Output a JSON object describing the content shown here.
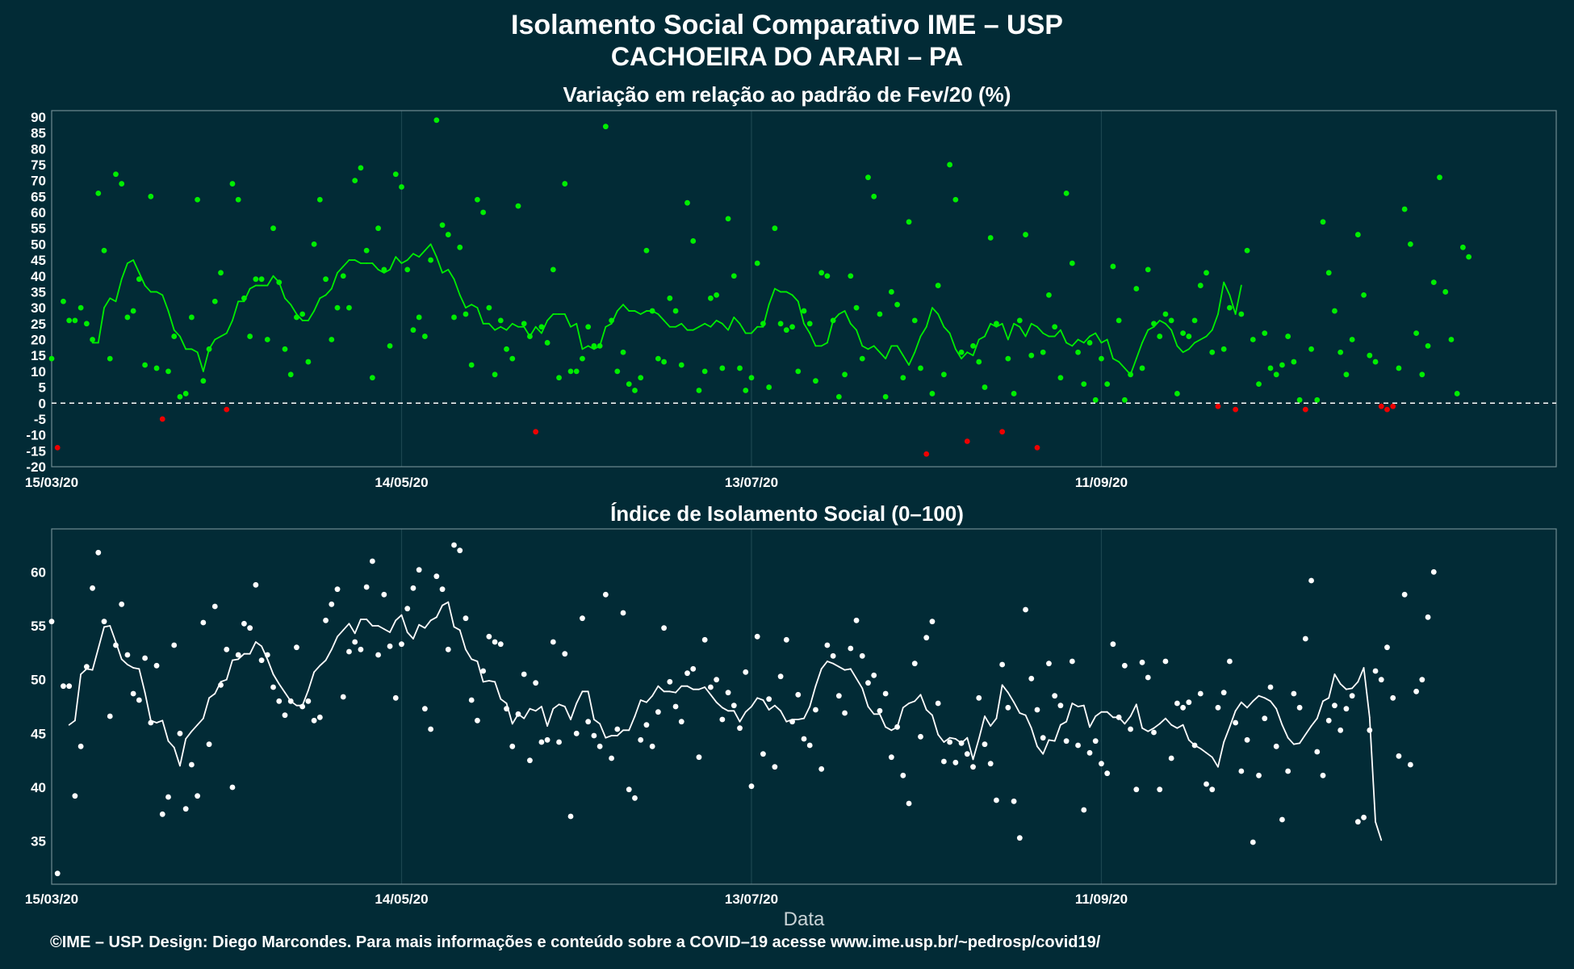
{
  "title": "Isolamento Social Comparativo IME – USP",
  "subtitle": "CACHOEIRA DO ARARI – PA",
  "footer": "©IME – USP. Design: Diego Marcondes. Para mais informações e conteúdo sobre a COVID–19 acesse www.ime.usp.br/~pedrosp/covid19/",
  "colors": {
    "background": "#022b36",
    "positive": "#00ee00",
    "negative": "#ee0000",
    "index": "#ffffff",
    "grid": "#1c4650"
  },
  "chart_data": [
    {
      "type": "scatter",
      "title": "Variação em relação ao padrão de Fev/20 (%)",
      "xlabel": "",
      "ylabel": "",
      "x_start": "15/03/20",
      "x_end": "28/11/20",
      "ylim": [
        -20,
        92
      ],
      "yticks": [
        -20,
        -15,
        -10,
        -5,
        0,
        5,
        10,
        15,
        20,
        25,
        30,
        35,
        40,
        45,
        50,
        55,
        60,
        65,
        70,
        75,
        80,
        85,
        90
      ],
      "xtick_labels": [
        "15/03/20",
        "14/05/20",
        "13/07/20",
        "11/09/20"
      ],
      "reference_line": 0,
      "grid": true,
      "legend": "none",
      "series": [
        {
          "kind": "points",
          "values": [
            14,
            -14,
            32,
            26,
            26,
            30,
            25,
            20,
            66,
            48,
            14,
            72,
            69,
            27,
            29,
            39,
            12,
            65,
            11,
            -5,
            10,
            21,
            2,
            3,
            27,
            64,
            7,
            17,
            32,
            41,
            -2,
            69,
            64,
            33,
            21,
            39,
            39,
            20,
            55,
            38,
            17,
            9,
            27,
            28,
            13,
            50,
            64,
            39,
            20,
            30,
            40,
            30,
            70,
            74,
            48,
            8,
            55,
            42,
            18,
            72,
            68,
            42,
            23,
            27,
            21,
            45,
            89,
            56,
            53,
            27,
            49,
            28,
            12,
            64,
            60,
            30,
            9,
            26,
            17,
            14,
            62,
            25,
            21,
            -9,
            24,
            19,
            42,
            8,
            69,
            10,
            10,
            14,
            24,
            18,
            18,
            87,
            26,
            10,
            16,
            6,
            4,
            8,
            48,
            29,
            14,
            13,
            33,
            29,
            12,
            63,
            51,
            4,
            10,
            33,
            34,
            11,
            58,
            40,
            11,
            4,
            8,
            44,
            25,
            5,
            55,
            25,
            23,
            24,
            10,
            29,
            25,
            7,
            41,
            40,
            26,
            2,
            9,
            40,
            30,
            14,
            71,
            65,
            28,
            2,
            35,
            31,
            8,
            57,
            26,
            11,
            -16,
            3,
            37,
            9,
            75,
            64,
            16,
            -12,
            18,
            13,
            5,
            52,
            25,
            -9,
            14,
            3,
            26,
            53,
            15,
            -14,
            16,
            34,
            24,
            8,
            66,
            44,
            16,
            6,
            19,
            1,
            14,
            6,
            43,
            26,
            1,
            9,
            36,
            11,
            42,
            25,
            21,
            28,
            26,
            3,
            22,
            21,
            26,
            37,
            41,
            16,
            -1,
            17,
            30,
            -2,
            28,
            48,
            20,
            6,
            22,
            11,
            9,
            12,
            21,
            13,
            1,
            -2,
            17,
            1,
            57,
            41,
            29,
            16,
            9,
            20,
            53,
            34,
            15,
            13,
            -1,
            -2,
            -1,
            11,
            61,
            50,
            22,
            9,
            18,
            38,
            71,
            35,
            20,
            3,
            49,
            46
          ]
        },
        {
          "kind": "line",
          "start_index": 7,
          "values": [
            19,
            19,
            30,
            33,
            32,
            39,
            44,
            45,
            41,
            37,
            35,
            35,
            34,
            29,
            23,
            21,
            17,
            17,
            16,
            10,
            17,
            20,
            21,
            22,
            26,
            32,
            32,
            36,
            37,
            37,
            37,
            40,
            38,
            33,
            31,
            28,
            26,
            26,
            29,
            33,
            34,
            36,
            41,
            43,
            45,
            45,
            44,
            44,
            44,
            42,
            41,
            42,
            46,
            44,
            45,
            47,
            46,
            48,
            50,
            46,
            41,
            42,
            39,
            34,
            30,
            31,
            30,
            25,
            25,
            23,
            24,
            23,
            25,
            24,
            24,
            21,
            24,
            22,
            26,
            28,
            28,
            28,
            24,
            25,
            17,
            18,
            17,
            18,
            24,
            25,
            29,
            31,
            29,
            29,
            28,
            29,
            29,
            28,
            26,
            24,
            24,
            25,
            23,
            23,
            24,
            25,
            24,
            26,
            25,
            23,
            27,
            25,
            22,
            22,
            24,
            24,
            31,
            36,
            35,
            35,
            34,
            32,
            25,
            22,
            18,
            18,
            19,
            26,
            28,
            29,
            25,
            23,
            18,
            17,
            18,
            16,
            14,
            18,
            18,
            15,
            12,
            16,
            21,
            24,
            30,
            28,
            24,
            22,
            17,
            14,
            16,
            15,
            20,
            21,
            25,
            24,
            25,
            20,
            25,
            24,
            21,
            25,
            24,
            22,
            21,
            21,
            23,
            19,
            18,
            20,
            19,
            21,
            22,
            19,
            20,
            14,
            13,
            11,
            9,
            14,
            19,
            23,
            24,
            26,
            25,
            23,
            18,
            16,
            17,
            19,
            20,
            21,
            23,
            28,
            38,
            34,
            28,
            37
          ]
        }
      ]
    },
    {
      "type": "scatter",
      "title": "Índice de Isolamento Social (0–100)",
      "xlabel": "Data",
      "ylabel": "",
      "x_start": "15/03/20",
      "x_end": "28/11/20",
      "ylim": [
        31,
        64
      ],
      "yticks": [
        35,
        40,
        45,
        50,
        55,
        60
      ],
      "xtick_labels": [
        "15/03/20",
        "14/05/20",
        "13/07/20",
        "11/09/20"
      ],
      "grid": true,
      "legend": "none",
      "series": [
        {
          "kind": "points",
          "values": [
            55.4,
            32.0,
            49.4,
            49.4,
            39.2,
            43.8,
            51.2,
            58.5,
            61.8,
            55.4,
            46.6,
            53.2,
            57.0,
            52.3,
            48.7,
            48.1,
            52.0,
            46.0,
            51.3,
            37.5,
            39.1,
            53.2,
            45.0,
            38.0,
            42.1,
            39.2,
            55.3,
            44.0,
            56.8,
            49.5,
            52.8,
            40.0,
            52.3,
            55.2,
            54.8,
            58.8,
            51.8,
            52.3,
            49.3,
            48.0,
            46.7,
            48.0,
            53.0,
            47.5,
            48.0,
            46.2,
            46.5,
            55.5,
            57.0,
            58.4,
            48.4,
            52.6,
            53.5,
            52.8,
            58.6,
            61.0,
            52.3,
            57.9,
            53.1,
            48.3,
            53.3,
            56.6,
            58.5,
            60.2,
            47.3,
            45.4,
            59.6,
            58.4,
            52.8,
            62.5,
            62.0,
            55.7,
            48.1,
            46.2,
            50.8,
            54.0,
            53.5,
            53.3,
            47.3,
            43.8,
            46.8,
            50.5,
            42.5,
            49.7,
            44.2,
            44.4,
            53.5,
            44.2,
            52.4,
            37.3,
            45.0,
            55.7,
            46.1,
            44.8,
            43.8,
            57.9,
            42.7,
            45.4,
            56.2,
            39.8,
            39.0,
            44.4,
            45.8,
            43.8,
            47.0,
            54.8,
            49.8,
            47.5,
            46.1,
            50.6,
            51.0,
            42.8,
            53.7,
            49.3,
            50.0,
            46.3,
            48.8,
            47.6,
            45.5,
            50.7,
            40.1,
            54.0,
            43.1,
            48.2,
            41.9,
            50.3,
            53.7,
            46.1,
            48.6,
            44.5,
            43.9,
            47.2,
            41.7,
            53.2,
            52.2,
            48.5,
            46.9,
            52.9,
            55.5,
            52.2,
            49.7,
            50.4,
            47.1,
            48.7,
            42.8,
            45.6,
            41.1,
            38.5,
            51.5,
            44.7,
            53.9,
            55.4,
            47.8,
            42.4,
            44.2,
            42.3,
            44.1,
            43.1,
            41.9,
            48.3,
            44.0,
            42.2,
            38.8,
            51.4,
            47.4,
            38.7,
            35.3,
            56.5,
            50.1,
            47.2,
            44.6,
            51.5,
            48.5,
            47.6,
            44.3,
            51.7,
            43.9,
            37.9,
            43.2,
            44.3,
            42.2,
            41.3,
            53.3,
            46.5,
            51.3,
            45.4,
            39.8,
            51.6,
            50.2,
            45.1,
            39.8,
            51.7,
            42.7,
            47.8,
            47.4,
            47.9,
            43.9,
            48.7,
            40.3,
            39.8,
            47.4,
            48.8,
            51.7,
            46.0,
            41.5,
            44.4,
            34.9,
            41.1,
            46.4,
            49.3,
            43.8,
            37.0,
            41.5,
            48.7,
            47.4,
            53.8,
            59.2,
            43.3,
            41.1,
            46.2,
            47.6,
            45.3,
            47.3,
            48.5,
            36.8,
            37.2,
            45.3,
            50.8,
            50.0,
            53.0,
            48.3,
            42.9,
            57.9,
            42.1,
            48.9,
            50.0,
            55.8,
            60.0
          ]
        },
        {
          "kind": "line",
          "start_index": 3,
          "values": [
            45.8,
            46.2,
            50.5,
            51.0,
            50.9,
            52.9,
            54.9,
            55.0,
            53.5,
            51.9,
            51.4,
            51.1,
            51.0,
            48.8,
            46.2,
            46.0,
            46.2,
            44.3,
            43.7,
            42.0,
            44.5,
            45.2,
            45.8,
            46.4,
            48.3,
            48.7,
            49.8,
            50.0,
            51.8,
            51.9,
            52.4,
            52.4,
            53.5,
            53.1,
            51.9,
            50.5,
            49.6,
            48.8,
            48.0,
            47.6,
            47.6,
            49.0,
            50.7,
            51.3,
            51.8,
            52.8,
            54.0,
            54.6,
            55.2,
            54.3,
            55.6,
            55.6,
            55.0,
            55.0,
            54.7,
            54.4,
            55.5,
            56.0,
            54.4,
            53.8,
            55.1,
            54.8,
            55.5,
            55.8,
            56.9,
            57.2,
            54.9,
            54.6,
            52.8,
            51.9,
            51.7,
            49.8,
            49.9,
            49.8,
            48.2,
            47.8,
            45.9,
            46.8,
            46.4,
            47.3,
            47.1,
            47.5,
            45.7,
            47.3,
            47.7,
            47.5,
            46.3,
            47.8,
            48.9,
            48.9,
            46.3,
            45.9,
            44.6,
            44.8,
            44.8,
            45.3,
            45.3,
            46.6,
            48.1,
            47.9,
            48.5,
            49.4,
            48.9,
            48.9,
            48.8,
            49.4,
            49.4,
            49.1,
            49.1,
            49.3,
            48.6,
            47.9,
            47.4,
            47.1,
            47.1,
            46.1,
            47.0,
            47.5,
            48.3,
            48.1,
            47.2,
            47.6,
            47.1,
            46.1,
            46.3,
            46.3,
            46.4,
            47.5,
            49.4,
            51.0,
            51.7,
            51.5,
            51.2,
            50.9,
            51.0,
            50.1,
            49.2,
            47.5,
            46.8,
            46.8,
            45.6,
            45.3,
            45.6,
            47.4,
            47.8,
            48.0,
            48.6,
            47.2,
            46.7,
            44.9,
            44.2,
            44.6,
            44.5,
            44.1,
            44.6,
            42.6,
            44.5,
            46.6,
            45.7,
            46.4,
            49.5,
            48.8,
            47.9,
            46.9,
            46.7,
            45.5,
            43.8,
            43.1,
            44.4,
            44.3,
            45.8,
            46.1,
            47.8,
            47.5,
            47.6,
            45.6,
            46.6,
            47.0,
            47.0,
            46.5,
            46.5,
            45.9,
            46.6,
            47.7,
            45.5,
            45.2,
            45.5,
            45.9,
            46.4,
            45.8,
            45.5,
            45.8,
            44.4,
            43.9,
            43.6,
            43.2,
            42.8,
            41.9,
            44.2,
            45.6,
            47.1,
            47.9,
            47.4,
            48.0,
            48.5,
            48.3,
            48.0,
            47.3,
            45.8,
            44.6,
            44.0,
            44.1,
            44.9,
            45.7,
            46.4,
            48.0,
            48.3,
            50.5,
            49.6,
            49.1,
            49.2,
            49.8,
            51.1,
            46.5,
            36.8,
            35.1
          ]
        }
      ]
    }
  ]
}
